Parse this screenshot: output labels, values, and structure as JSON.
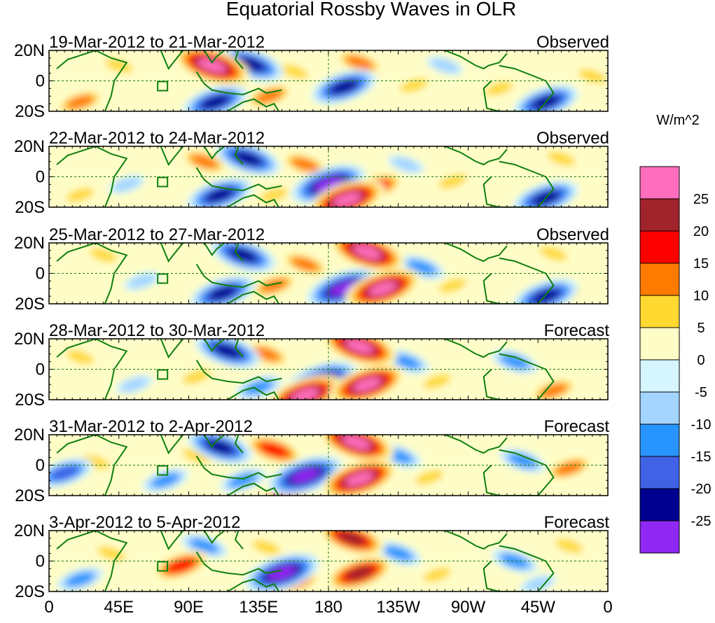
{
  "chart_data": {
    "type": "heatmap",
    "title": "Equatorial Rossby Waves in OLR",
    "colorbar": {
      "units": "W/m^2",
      "colors": [
        "#ff6ebc",
        "#a1232c",
        "#ff0000",
        "#ff7a00",
        "#ffd930",
        "#fffdc7",
        "#d5f6ff",
        "#a4d5ff",
        "#2894ff",
        "#4062e4",
        "#00008f",
        "#8f28f2"
      ],
      "tick_labels": [
        "25",
        "20",
        "15",
        "10",
        "5",
        "0",
        "-5",
        "-10",
        "-15",
        "-20",
        "-25"
      ]
    },
    "x_ticks": [
      "0",
      "45E",
      "90E",
      "135E",
      "180",
      "135W",
      "90W",
      "45W",
      "0"
    ],
    "y_ticks": [
      "20N",
      "0",
      "20S"
    ],
    "lon_range": [
      0,
      360
    ],
    "lat_range": [
      -20,
      20
    ],
    "panels": [
      {
        "date_range": "19-Mar-2012 to 21-Mar-2012",
        "status": "Observed",
        "features": [
          {
            "lon": 105,
            "lat": 10,
            "value": 27
          },
          {
            "lon": 130,
            "lat": 11,
            "value": -24
          },
          {
            "lon": 118,
            "lat": -4,
            "value": 10
          },
          {
            "lon": 107,
            "lat": -14,
            "value": -23
          },
          {
            "lon": 142,
            "lat": -10,
            "value": 12
          },
          {
            "lon": 190,
            "lat": -4,
            "value": -24
          },
          {
            "lon": 200,
            "lat": 12,
            "value": 12
          },
          {
            "lon": 235,
            "lat": -3,
            "value": 7
          },
          {
            "lon": 158,
            "lat": 6,
            "value": 8
          },
          {
            "lon": 20,
            "lat": -14,
            "value": 12
          },
          {
            "lon": 45,
            "lat": 10,
            "value": 6
          },
          {
            "lon": 255,
            "lat": 10,
            "value": -8
          },
          {
            "lon": 290,
            "lat": -5,
            "value": 8
          },
          {
            "lon": 320,
            "lat": -14,
            "value": -21
          },
          {
            "lon": 350,
            "lat": 3,
            "value": 8
          }
        ]
      },
      {
        "date_range": "22-Mar-2012 to 24-Mar-2012",
        "status": "Observed",
        "features": [
          {
            "lon": 100,
            "lat": 10,
            "value": 14
          },
          {
            "lon": 128,
            "lat": 12,
            "value": -21
          },
          {
            "lon": 110,
            "lat": -12,
            "value": -23
          },
          {
            "lon": 180,
            "lat": -5,
            "value": -26
          },
          {
            "lon": 192,
            "lat": -15,
            "value": 27
          },
          {
            "lon": 210,
            "lat": -7,
            "value": 17
          },
          {
            "lon": 165,
            "lat": 8,
            "value": 14
          },
          {
            "lon": 230,
            "lat": 8,
            "value": -10
          },
          {
            "lon": 260,
            "lat": -3,
            "value": 9
          },
          {
            "lon": 320,
            "lat": -14,
            "value": -22
          },
          {
            "lon": 330,
            "lat": 12,
            "value": 8
          },
          {
            "lon": 20,
            "lat": -12,
            "value": 10
          },
          {
            "lon": 50,
            "lat": -5,
            "value": -8
          },
          {
            "lon": 145,
            "lat": -12,
            "value": 10
          }
        ]
      },
      {
        "date_range": "25-Mar-2012 to 27-Mar-2012",
        "status": "Observed",
        "features": [
          {
            "lon": 125,
            "lat": 12,
            "value": -22
          },
          {
            "lon": 112,
            "lat": -13,
            "value": -23
          },
          {
            "lon": 145,
            "lat": -8,
            "value": 14
          },
          {
            "lon": 165,
            "lat": 6,
            "value": 14
          },
          {
            "lon": 190,
            "lat": -10,
            "value": -27
          },
          {
            "lon": 205,
            "lat": 14,
            "value": 27
          },
          {
            "lon": 215,
            "lat": -10,
            "value": 27
          },
          {
            "lon": 240,
            "lat": 4,
            "value": -12
          },
          {
            "lon": 260,
            "lat": -8,
            "value": 9
          },
          {
            "lon": 320,
            "lat": -15,
            "value": -22
          },
          {
            "lon": 330,
            "lat": -14,
            "value": 14
          },
          {
            "lon": 325,
            "lat": 13,
            "value": 10
          },
          {
            "lon": 35,
            "lat": 12,
            "value": 8
          },
          {
            "lon": 60,
            "lat": -5,
            "value": -9
          }
        ]
      },
      {
        "date_range": "28-Mar-2012 to 30-Mar-2012",
        "status": "Forecast",
        "features": [
          {
            "lon": 115,
            "lat": 12,
            "value": -23
          },
          {
            "lon": 140,
            "lat": 10,
            "value": 14
          },
          {
            "lon": 135,
            "lat": -12,
            "value": -12
          },
          {
            "lon": 175,
            "lat": -8,
            "value": -27
          },
          {
            "lon": 165,
            "lat": -17,
            "value": 27
          },
          {
            "lon": 200,
            "lat": 15,
            "value": 27
          },
          {
            "lon": 205,
            "lat": -10,
            "value": 27
          },
          {
            "lon": 230,
            "lat": 5,
            "value": -12
          },
          {
            "lon": 250,
            "lat": -8,
            "value": 10
          },
          {
            "lon": 325,
            "lat": -14,
            "value": 14
          },
          {
            "lon": 300,
            "lat": 5,
            "value": -12
          },
          {
            "lon": 20,
            "lat": 8,
            "value": 10
          },
          {
            "lon": 55,
            "lat": -10,
            "value": -8
          },
          {
            "lon": 95,
            "lat": -5,
            "value": 9
          }
        ]
      },
      {
        "date_range": "31-Mar-2012 to 2-Apr-2012",
        "status": "Forecast",
        "features": [
          {
            "lon": 110,
            "lat": 12,
            "value": -22
          },
          {
            "lon": 145,
            "lat": 10,
            "value": 16
          },
          {
            "lon": 125,
            "lat": -10,
            "value": -12
          },
          {
            "lon": 165,
            "lat": -7,
            "value": -27
          },
          {
            "lon": 155,
            "lat": -17,
            "value": 20
          },
          {
            "lon": 198,
            "lat": 15,
            "value": 26
          },
          {
            "lon": 200,
            "lat": -9,
            "value": 27
          },
          {
            "lon": 225,
            "lat": 6,
            "value": -12
          },
          {
            "lon": 245,
            "lat": -8,
            "value": 10
          },
          {
            "lon": 305,
            "lat": 3,
            "value": -13
          },
          {
            "lon": 335,
            "lat": -2,
            "value": 12
          },
          {
            "lon": 10,
            "lat": -5,
            "value": -16
          },
          {
            "lon": 30,
            "lat": 2,
            "value": 8
          },
          {
            "lon": 75,
            "lat": -10,
            "value": -12
          },
          {
            "lon": 95,
            "lat": 6,
            "value": 10
          }
        ]
      },
      {
        "date_range": "3-Apr-2012 to 5-Apr-2012",
        "status": "Forecast",
        "features": [
          {
            "lon": 85,
            "lat": -3,
            "value": 17
          },
          {
            "lon": 100,
            "lat": 10,
            "value": -14
          },
          {
            "lon": 150,
            "lat": -8,
            "value": -26
          },
          {
            "lon": 140,
            "lat": 9,
            "value": 10
          },
          {
            "lon": 160,
            "lat": -14,
            "value": 15
          },
          {
            "lon": 195,
            "lat": 15,
            "value": 22
          },
          {
            "lon": 200,
            "lat": -8,
            "value": 22
          },
          {
            "lon": 225,
            "lat": 5,
            "value": -12
          },
          {
            "lon": 250,
            "lat": -9,
            "value": 10
          },
          {
            "lon": 300,
            "lat": 0,
            "value": -13
          },
          {
            "lon": 335,
            "lat": 10,
            "value": 10
          },
          {
            "lon": 20,
            "lat": -12,
            "value": -12
          },
          {
            "lon": 40,
            "lat": 5,
            "value": 7
          },
          {
            "lon": 315,
            "lat": -15,
            "value": -10
          }
        ]
      }
    ]
  }
}
